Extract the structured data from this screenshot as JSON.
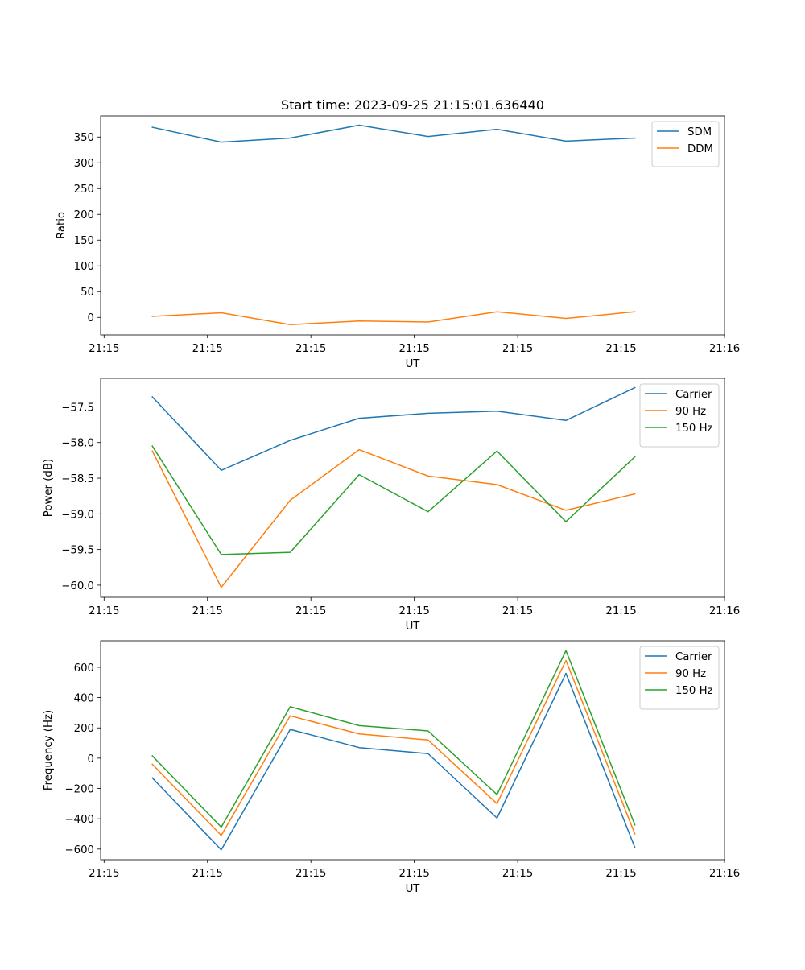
{
  "chart_data": [
    {
      "type": "line",
      "title": "Start time: 2023-09-25 21:15:01.636440",
      "xlabel": "UT",
      "ylabel": "Ratio",
      "x": [
        0,
        1,
        2,
        3,
        4,
        5,
        6,
        7
      ],
      "xlim": [
        -0.75,
        8.3
      ],
      "xticks": [
        -0.7,
        0.8,
        2.3,
        3.8,
        5.3,
        6.8,
        8.3
      ],
      "xtick_labels": [
        "21:15",
        "21:15",
        "21:15",
        "21:15",
        "21:15",
        "21:15",
        "21:16"
      ],
      "ylim": [
        -34,
        391
      ],
      "yticks": [
        0,
        50,
        100,
        150,
        200,
        250,
        300,
        350
      ],
      "ytick_labels": [
        "0",
        "50",
        "100",
        "150",
        "200",
        "250",
        "300",
        "350"
      ],
      "legend_position": "top-right",
      "series": [
        {
          "name": "SDM",
          "color": "#1f77b4",
          "values": [
            369,
            340,
            348,
            373,
            351,
            365,
            342,
            348
          ]
        },
        {
          "name": "DDM",
          "color": "#ff7f0e",
          "values": [
            2,
            9,
            -14,
            -7,
            -9,
            11,
            -2,
            11
          ]
        }
      ]
    },
    {
      "type": "line",
      "title": "",
      "xlabel": "UT",
      "ylabel": "Power (dB)",
      "x": [
        0,
        1,
        2,
        3,
        4,
        5,
        6,
        7
      ],
      "xlim": [
        -0.75,
        8.3
      ],
      "xticks": [
        -0.7,
        0.8,
        2.3,
        3.8,
        5.3,
        6.8,
        8.3
      ],
      "xtick_labels": [
        "21:15",
        "21:15",
        "21:15",
        "21:15",
        "21:15",
        "21:15",
        "21:16"
      ],
      "ylim": [
        -60.17,
        -57.1
      ],
      "yticks": [
        -60.0,
        -59.5,
        -59.0,
        -58.5,
        -58.0,
        -57.5
      ],
      "ytick_labels": [
        "−60.0",
        "−59.5",
        "−59.0",
        "−58.5",
        "−58.0",
        "−57.5"
      ],
      "legend_position": "top-right",
      "series": [
        {
          "name": "Carrier",
          "color": "#1f77b4",
          "values": [
            -57.36,
            -58.39,
            -57.97,
            -57.66,
            -57.59,
            -57.56,
            -57.69,
            -57.23
          ]
        },
        {
          "name": "90 Hz",
          "color": "#ff7f0e",
          "values": [
            -58.12,
            -60.03,
            -58.81,
            -58.1,
            -58.47,
            -58.59,
            -58.95,
            -58.72
          ]
        },
        {
          "name": "150 Hz",
          "color": "#2ca02c",
          "values": [
            -58.05,
            -59.57,
            -59.54,
            -58.45,
            -58.97,
            -58.12,
            -59.11,
            -58.2
          ]
        }
      ]
    },
    {
      "type": "line",
      "title": "",
      "xlabel": "UT",
      "ylabel": "Frequency (Hz)",
      "x": [
        0,
        1,
        2,
        3,
        4,
        5,
        6,
        7
      ],
      "xlim": [
        -0.75,
        8.3
      ],
      "xticks": [
        -0.7,
        0.8,
        2.3,
        3.8,
        5.3,
        6.8,
        8.3
      ],
      "xtick_labels": [
        "21:15",
        "21:15",
        "21:15",
        "21:15",
        "21:15",
        "21:15",
        "21:16"
      ],
      "ylim": [
        -670,
        775
      ],
      "yticks": [
        -600,
        -400,
        -200,
        0,
        200,
        400,
        600
      ],
      "ytick_labels": [
        "−600",
        "−400",
        "−200",
        "0",
        "200",
        "400",
        "600"
      ],
      "legend_position": "top-right",
      "series": [
        {
          "name": "Carrier",
          "color": "#1f77b4",
          "values": [
            -130,
            -605,
            190,
            70,
            30,
            -395,
            560,
            -590
          ]
        },
        {
          "name": "90 Hz",
          "color": "#ff7f0e",
          "values": [
            -40,
            -510,
            280,
            160,
            120,
            -300,
            645,
            -500
          ]
        },
        {
          "name": "150 Hz",
          "color": "#2ca02c",
          "values": [
            15,
            -455,
            340,
            215,
            180,
            -240,
            710,
            -440
          ]
        }
      ]
    }
  ]
}
